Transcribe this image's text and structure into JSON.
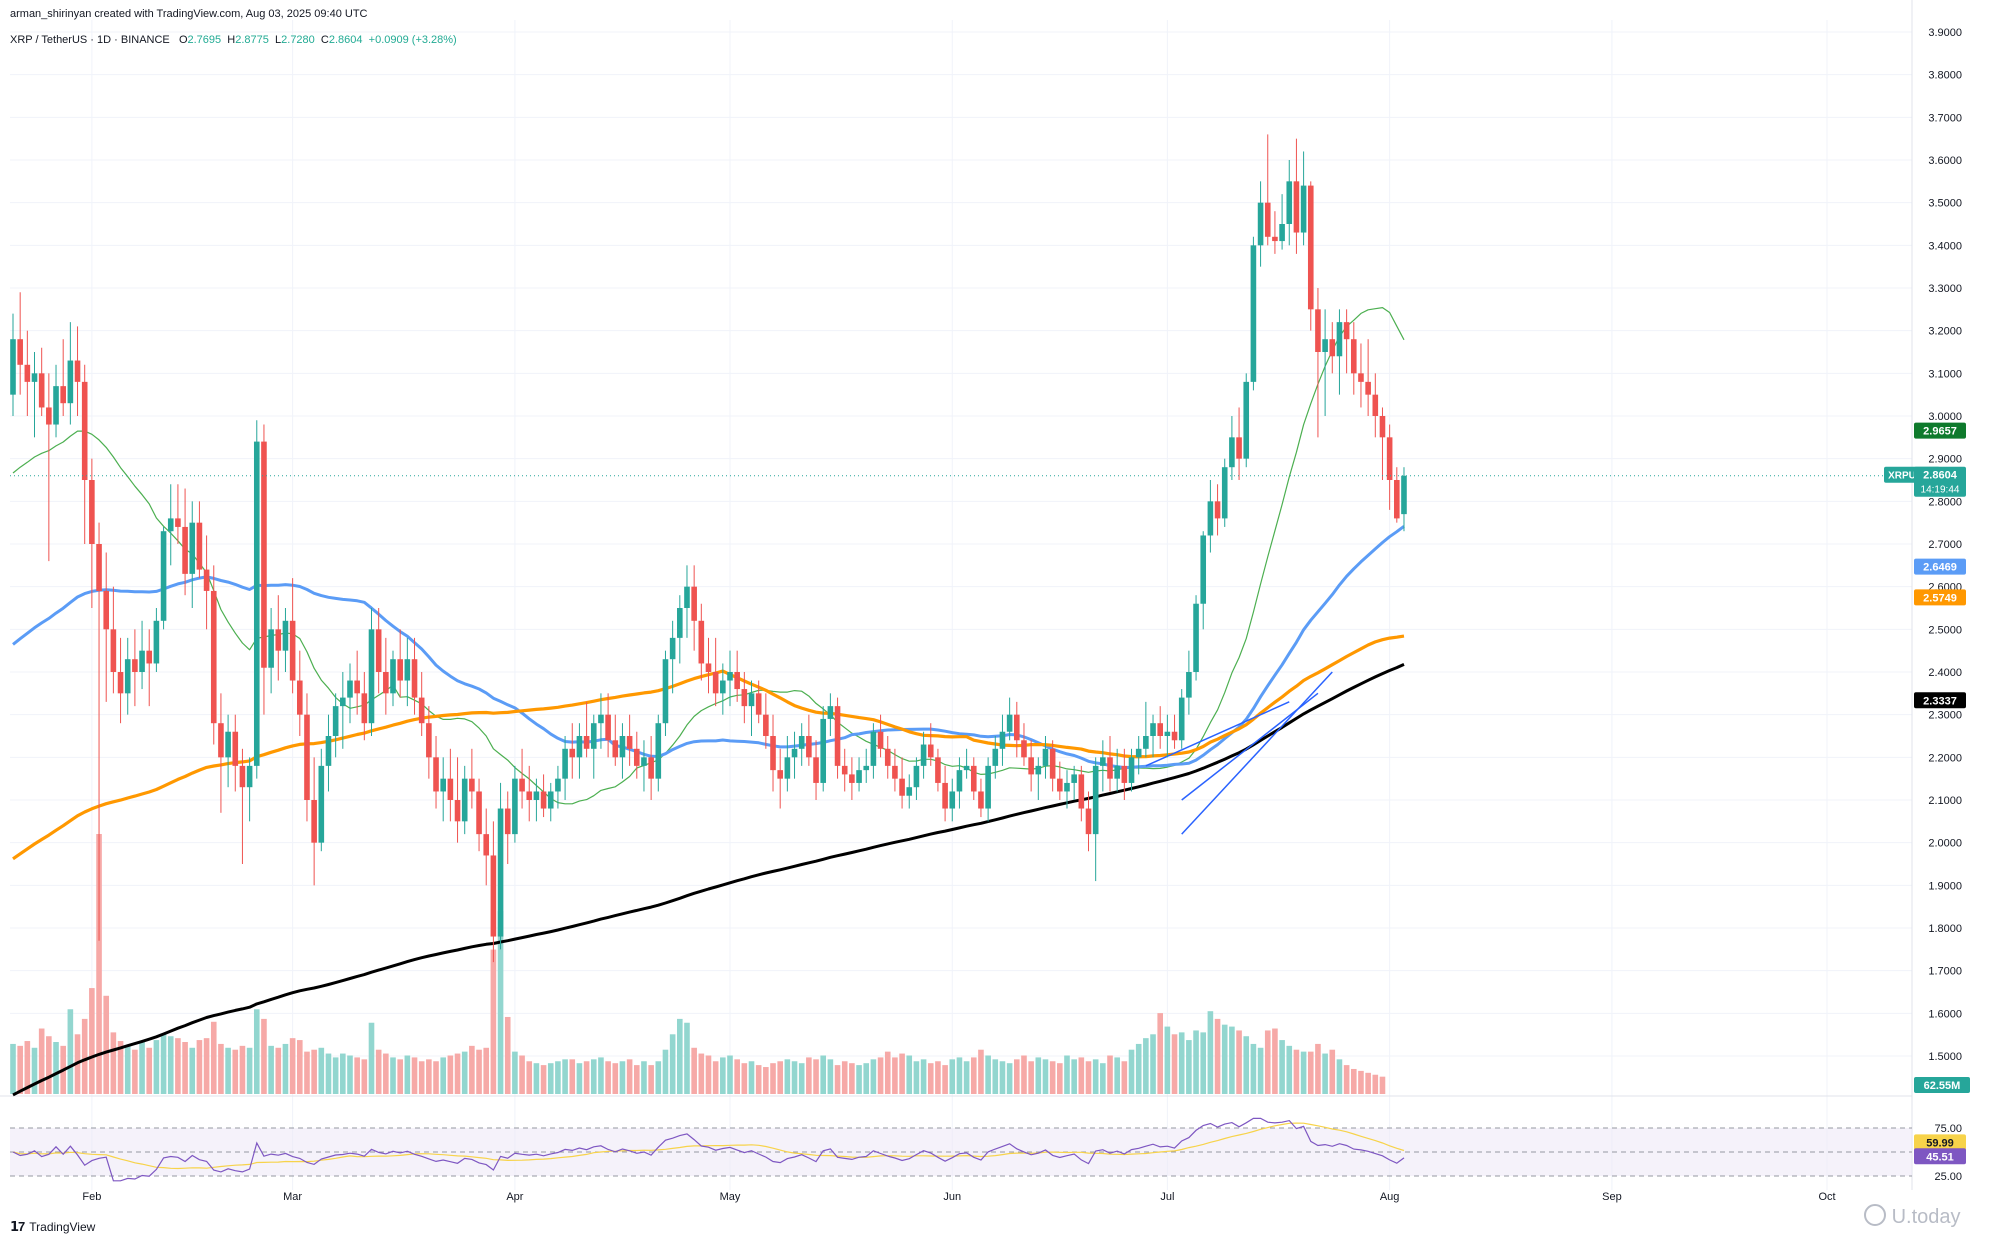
{
  "header": {
    "creator": "arman_shirinyan created with TradingView.com, Aug 03, 2025 09:40 UTC",
    "symbol": "XRP / TetherUS · 1D · BINANCE",
    "open_label": "O",
    "open": "2.7695",
    "high_label": "H",
    "high": "2.8775",
    "low_label": "L",
    "low": "2.7280",
    "close_label": "C",
    "close": "2.8604",
    "change": "+0.0909 (+3.28%)"
  },
  "footer": {
    "brand": "TradingView",
    "watermark": "U.today"
  },
  "colors": {
    "up": "#26a69a",
    "down": "#ef5350",
    "ma20": "#4caf50",
    "ma50": "#5b9cf6",
    "ma100": "#ff9800",
    "ma200": "#000000",
    "rsi": "#7e57c2",
    "rsi_ma": "#f7d34a",
    "trend": "#2962ff"
  },
  "chart_data": {
    "type": "candlestick",
    "symbol": "XRPUSDT",
    "timeframe": "1D",
    "ylim": [
      1.44,
      3.9
    ],
    "y_ticks": [
      "3.9000",
      "3.8000",
      "3.7000",
      "3.6000",
      "3.5000",
      "3.4000",
      "3.3000",
      "3.2000",
      "3.1000",
      "3.0000",
      "2.9000",
      "2.8000",
      "2.7000",
      "2.6000",
      "2.5000",
      "2.4000",
      "2.3000",
      "2.2000",
      "2.1000",
      "2.0000",
      "1.9000",
      "1.8000",
      "1.7000",
      "1.6000",
      "1.5000"
    ],
    "x_ticks": [
      {
        "label": "Feb",
        "i": 11
      },
      {
        "label": "Mar",
        "i": 39
      },
      {
        "label": "Apr",
        "i": 70
      },
      {
        "label": "May",
        "i": 100
      },
      {
        "label": "Jun",
        "i": 131
      },
      {
        "label": "Jul",
        "i": 161
      },
      {
        "label": "Aug",
        "i": 192
      },
      {
        "label": "Sep",
        "i": 223
      },
      {
        "label": "Oct",
        "i": 253
      }
    ],
    "candles": [
      [
        3.05,
        3.24,
        3.0,
        3.18
      ],
      [
        3.18,
        3.29,
        3.05,
        3.12
      ],
      [
        3.12,
        3.2,
        3.0,
        3.08
      ],
      [
        3.08,
        3.15,
        2.95,
        3.1
      ],
      [
        3.1,
        3.16,
        3.0,
        3.02
      ],
      [
        3.02,
        3.1,
        2.66,
        2.98
      ],
      [
        2.98,
        3.12,
        2.95,
        3.07
      ],
      [
        3.07,
        3.18,
        3.0,
        3.03
      ],
      [
        3.03,
        3.22,
        2.98,
        3.13
      ],
      [
        3.13,
        3.21,
        3.0,
        3.08
      ],
      [
        3.08,
        3.12,
        2.7,
        2.85
      ],
      [
        2.85,
        2.9,
        2.55,
        2.7
      ],
      [
        2.7,
        2.75,
        1.77,
        2.59
      ],
      [
        2.59,
        2.68,
        2.33,
        2.5
      ],
      [
        2.5,
        2.6,
        2.35,
        2.4
      ],
      [
        2.4,
        2.48,
        2.28,
        2.35
      ],
      [
        2.35,
        2.48,
        2.3,
        2.43
      ],
      [
        2.43,
        2.5,
        2.32,
        2.4
      ],
      [
        2.4,
        2.52,
        2.36,
        2.45
      ],
      [
        2.45,
        2.5,
        2.32,
        2.42
      ],
      [
        2.42,
        2.55,
        2.4,
        2.52
      ],
      [
        2.52,
        2.74,
        2.5,
        2.73
      ],
      [
        2.73,
        2.84,
        2.65,
        2.76
      ],
      [
        2.76,
        2.84,
        2.7,
        2.74
      ],
      [
        2.74,
        2.83,
        2.58,
        2.63
      ],
      [
        2.63,
        2.8,
        2.55,
        2.75
      ],
      [
        2.75,
        2.8,
        2.62,
        2.64
      ],
      [
        2.64,
        2.72,
        2.5,
        2.59
      ],
      [
        2.59,
        2.65,
        2.23,
        2.28
      ],
      [
        2.28,
        2.35,
        2.07,
        2.2
      ],
      [
        2.2,
        2.3,
        2.13,
        2.26
      ],
      [
        2.26,
        2.3,
        2.12,
        2.18
      ],
      [
        2.18,
        2.22,
        1.95,
        2.13
      ],
      [
        2.13,
        2.2,
        2.05,
        2.18
      ],
      [
        2.18,
        2.99,
        2.15,
        2.94
      ],
      [
        2.94,
        2.98,
        2.3,
        2.41
      ],
      [
        2.41,
        2.55,
        2.35,
        2.5
      ],
      [
        2.5,
        2.58,
        2.38,
        2.45
      ],
      [
        2.45,
        2.55,
        2.4,
        2.52
      ],
      [
        2.52,
        2.62,
        2.35,
        2.38
      ],
      [
        2.38,
        2.45,
        2.25,
        2.3
      ],
      [
        2.3,
        2.35,
        2.05,
        2.1
      ],
      [
        2.1,
        2.2,
        1.9,
        2.0
      ],
      [
        2.0,
        2.22,
        1.98,
        2.18
      ],
      [
        2.18,
        2.3,
        2.12,
        2.25
      ],
      [
        2.25,
        2.35,
        2.2,
        2.32
      ],
      [
        2.32,
        2.4,
        2.22,
        2.34
      ],
      [
        2.34,
        2.42,
        2.28,
        2.38
      ],
      [
        2.38,
        2.45,
        2.3,
        2.35
      ],
      [
        2.35,
        2.4,
        2.24,
        2.28
      ],
      [
        2.28,
        2.55,
        2.25,
        2.5
      ],
      [
        2.5,
        2.55,
        2.35,
        2.4
      ],
      [
        2.4,
        2.48,
        2.3,
        2.35
      ],
      [
        2.35,
        2.45,
        2.32,
        2.43
      ],
      [
        2.43,
        2.5,
        2.34,
        2.38
      ],
      [
        2.38,
        2.48,
        2.32,
        2.43
      ],
      [
        2.43,
        2.48,
        2.3,
        2.34
      ],
      [
        2.34,
        2.4,
        2.25,
        2.28
      ],
      [
        2.28,
        2.32,
        2.15,
        2.2
      ],
      [
        2.2,
        2.25,
        2.08,
        2.12
      ],
      [
        2.12,
        2.2,
        2.05,
        2.15
      ],
      [
        2.15,
        2.22,
        2.05,
        2.1
      ],
      [
        2.1,
        2.2,
        2.0,
        2.05
      ],
      [
        2.05,
        2.18,
        2.02,
        2.15
      ],
      [
        2.15,
        2.22,
        2.08,
        2.12
      ],
      [
        2.12,
        2.15,
        1.98,
        2.02
      ],
      [
        2.02,
        2.08,
        1.9,
        1.97
      ],
      [
        1.97,
        2.05,
        1.72,
        1.78
      ],
      [
        1.78,
        2.14,
        1.75,
        2.08
      ],
      [
        2.08,
        2.12,
        1.95,
        2.02
      ],
      [
        2.02,
        2.18,
        2.0,
        2.15
      ],
      [
        2.15,
        2.22,
        2.08,
        2.12
      ],
      [
        2.12,
        2.18,
        2.05,
        2.1
      ],
      [
        2.1,
        2.15,
        2.05,
        2.12
      ],
      [
        2.12,
        2.16,
        2.06,
        2.08
      ],
      [
        2.08,
        2.14,
        2.05,
        2.12
      ],
      [
        2.12,
        2.18,
        2.08,
        2.15
      ],
      [
        2.15,
        2.25,
        2.1,
        2.22
      ],
      [
        2.22,
        2.28,
        2.15,
        2.2
      ],
      [
        2.2,
        2.28,
        2.15,
        2.25
      ],
      [
        2.25,
        2.33,
        2.2,
        2.22
      ],
      [
        2.22,
        2.3,
        2.15,
        2.28
      ],
      [
        2.28,
        2.35,
        2.22,
        2.3
      ],
      [
        2.3,
        2.35,
        2.2,
        2.24
      ],
      [
        2.24,
        2.3,
        2.18,
        2.2
      ],
      [
        2.2,
        2.28,
        2.15,
        2.25
      ],
      [
        2.25,
        2.3,
        2.18,
        2.22
      ],
      [
        2.22,
        2.26,
        2.15,
        2.18
      ],
      [
        2.18,
        2.24,
        2.12,
        2.2
      ],
      [
        2.2,
        2.25,
        2.1,
        2.15
      ],
      [
        2.15,
        2.3,
        2.12,
        2.28
      ],
      [
        2.28,
        2.45,
        2.25,
        2.43
      ],
      [
        2.43,
        2.52,
        2.35,
        2.48
      ],
      [
        2.48,
        2.58,
        2.42,
        2.55
      ],
      [
        2.55,
        2.65,
        2.48,
        2.6
      ],
      [
        2.6,
        2.65,
        2.45,
        2.52
      ],
      [
        2.52,
        2.56,
        2.38,
        2.42
      ],
      [
        2.42,
        2.48,
        2.35,
        2.4
      ],
      [
        2.4,
        2.48,
        2.32,
        2.35
      ],
      [
        2.35,
        2.42,
        2.3,
        2.38
      ],
      [
        2.38,
        2.45,
        2.32,
        2.4
      ],
      [
        2.4,
        2.45,
        2.33,
        2.36
      ],
      [
        2.36,
        2.4,
        2.28,
        2.32
      ],
      [
        2.32,
        2.38,
        2.25,
        2.35
      ],
      [
        2.35,
        2.38,
        2.28,
        2.3
      ],
      [
        2.3,
        2.35,
        2.22,
        2.25
      ],
      [
        2.25,
        2.3,
        2.12,
        2.17
      ],
      [
        2.17,
        2.22,
        2.08,
        2.15
      ],
      [
        2.15,
        2.25,
        2.12,
        2.2
      ],
      [
        2.2,
        2.26,
        2.15,
        2.22
      ],
      [
        2.22,
        2.28,
        2.18,
        2.25
      ],
      [
        2.25,
        2.3,
        2.18,
        2.2
      ],
      [
        2.2,
        2.24,
        2.1,
        2.14
      ],
      [
        2.14,
        2.32,
        2.12,
        2.29
      ],
      [
        2.29,
        2.35,
        2.25,
        2.32
      ],
      [
        2.32,
        2.34,
        2.15,
        2.18
      ],
      [
        2.18,
        2.22,
        2.12,
        2.16
      ],
      [
        2.16,
        2.2,
        2.1,
        2.14
      ],
      [
        2.14,
        2.2,
        2.12,
        2.17
      ],
      [
        2.17,
        2.22,
        2.14,
        2.18
      ],
      [
        2.18,
        2.28,
        2.15,
        2.26
      ],
      [
        2.26,
        2.3,
        2.2,
        2.22
      ],
      [
        2.22,
        2.25,
        2.15,
        2.18
      ],
      [
        2.18,
        2.22,
        2.12,
        2.15
      ],
      [
        2.15,
        2.2,
        2.08,
        2.11
      ],
      [
        2.11,
        2.16,
        2.08,
        2.13
      ],
      [
        2.13,
        2.2,
        2.1,
        2.18
      ],
      [
        2.18,
        2.26,
        2.15,
        2.23
      ],
      [
        2.23,
        2.28,
        2.18,
        2.2
      ],
      [
        2.2,
        2.22,
        2.12,
        2.14
      ],
      [
        2.14,
        2.18,
        2.05,
        2.08
      ],
      [
        2.08,
        2.15,
        2.05,
        2.12
      ],
      [
        2.12,
        2.2,
        2.08,
        2.17
      ],
      [
        2.17,
        2.22,
        2.15,
        2.18
      ],
      [
        2.18,
        2.2,
        2.1,
        2.12
      ],
      [
        2.12,
        2.15,
        2.06,
        2.08
      ],
      [
        2.08,
        2.2,
        2.05,
        2.18
      ],
      [
        2.18,
        2.25,
        2.15,
        2.22
      ],
      [
        2.22,
        2.3,
        2.18,
        2.26
      ],
      [
        2.26,
        2.34,
        2.24,
        2.3
      ],
      [
        2.3,
        2.33,
        2.2,
        2.24
      ],
      [
        2.24,
        2.28,
        2.18,
        2.2
      ],
      [
        2.2,
        2.24,
        2.12,
        2.16
      ],
      [
        2.16,
        2.2,
        2.1,
        2.18
      ],
      [
        2.18,
        2.25,
        2.15,
        2.22
      ],
      [
        2.22,
        2.24,
        2.12,
        2.15
      ],
      [
        2.15,
        2.19,
        2.1,
        2.12
      ],
      [
        2.12,
        2.17,
        2.08,
        2.14
      ],
      [
        2.14,
        2.18,
        2.1,
        2.16
      ],
      [
        2.16,
        2.18,
        2.05,
        2.08
      ],
      [
        2.08,
        2.12,
        1.98,
        2.02
      ],
      [
        2.02,
        2.2,
        1.91,
        2.18
      ],
      [
        2.18,
        2.24,
        2.12,
        2.2
      ],
      [
        2.2,
        2.25,
        2.12,
        2.15
      ],
      [
        2.15,
        2.22,
        2.12,
        2.18
      ],
      [
        2.18,
        2.22,
        2.1,
        2.14
      ],
      [
        2.14,
        2.22,
        2.12,
        2.2
      ],
      [
        2.2,
        2.25,
        2.16,
        2.22
      ],
      [
        2.22,
        2.33,
        2.2,
        2.25
      ],
      [
        2.25,
        2.3,
        2.2,
        2.28
      ],
      [
        2.28,
        2.32,
        2.22,
        2.25
      ],
      [
        2.25,
        2.3,
        2.2,
        2.26
      ],
      [
        2.26,
        2.3,
        2.22,
        2.24
      ],
      [
        2.24,
        2.36,
        2.22,
        2.34
      ],
      [
        2.34,
        2.45,
        2.3,
        2.4
      ],
      [
        2.4,
        2.58,
        2.38,
        2.56
      ],
      [
        2.56,
        2.73,
        2.5,
        2.72
      ],
      [
        2.72,
        2.85,
        2.68,
        2.8
      ],
      [
        2.8,
        2.84,
        2.72,
        2.76
      ],
      [
        2.76,
        2.9,
        2.74,
        2.88
      ],
      [
        2.88,
        3.0,
        2.85,
        2.95
      ],
      [
        2.95,
        3.02,
        2.85,
        2.9
      ],
      [
        2.9,
        3.1,
        2.88,
        3.08
      ],
      [
        3.08,
        3.42,
        3.06,
        3.4
      ],
      [
        3.4,
        3.55,
        3.35,
        3.5
      ],
      [
        3.5,
        3.66,
        3.4,
        3.42
      ],
      [
        3.42,
        3.48,
        3.38,
        3.41
      ],
      [
        3.41,
        3.52,
        3.39,
        3.45
      ],
      [
        3.45,
        3.6,
        3.4,
        3.55
      ],
      [
        3.55,
        3.65,
        3.38,
        3.43
      ],
      [
        3.43,
        3.62,
        3.4,
        3.54
      ],
      [
        3.54,
        3.55,
        3.2,
        3.25
      ],
      [
        3.25,
        3.3,
        2.95,
        3.15
      ],
      [
        3.15,
        3.25,
        3.0,
        3.18
      ],
      [
        3.18,
        3.22,
        3.1,
        3.14
      ],
      [
        3.14,
        3.25,
        3.05,
        3.22
      ],
      [
        3.22,
        3.25,
        3.1,
        3.18
      ],
      [
        3.18,
        3.22,
        3.05,
        3.1
      ],
      [
        3.1,
        3.17,
        3.02,
        3.08
      ],
      [
        3.08,
        3.18,
        3.0,
        3.05
      ],
      [
        3.05,
        3.1,
        2.95,
        3.0
      ],
      [
        3.0,
        3.02,
        2.85,
        2.95
      ],
      [
        2.95,
        2.98,
        2.78,
        2.85
      ],
      [
        2.85,
        2.88,
        2.75,
        2.76
      ],
      [
        2.77,
        2.88,
        2.73,
        2.86
      ]
    ],
    "volume": [
      52,
      50,
      55,
      48,
      68,
      60,
      54,
      50,
      88,
      62,
      78,
      110,
      270,
      102,
      64,
      55,
      50,
      46,
      54,
      48,
      56,
      62,
      60,
      58,
      54,
      48,
      56,
      58,
      75,
      52,
      48,
      46,
      50,
      48,
      88,
      78,
      50,
      48,
      52,
      58,
      56,
      44,
      46,
      48,
      42,
      38,
      42,
      40,
      38,
      36,
      74,
      46,
      42,
      38,
      36,
      40,
      38,
      34,
      36,
      34,
      38,
      40,
      42,
      44,
      50,
      46,
      48,
      150,
      190,
      80,
      44,
      40,
      34,
      32,
      30,
      32,
      34,
      36,
      36,
      32,
      34,
      36,
      38,
      34,
      32,
      34,
      36,
      30,
      34,
      30,
      34,
      46,
      62,
      78,
      74,
      48,
      42,
      40,
      34,
      38,
      40,
      36,
      32,
      34,
      30,
      28,
      32,
      34,
      36,
      34,
      32,
      38,
      36,
      40,
      36,
      30,
      34,
      32,
      30,
      32,
      36,
      38,
      44,
      38,
      42,
      40,
      34,
      36,
      32,
      34,
      30,
      36,
      38,
      34,
      38,
      46,
      40,
      36,
      34,
      32,
      36,
      40,
      34,
      38,
      36,
      34,
      32,
      40,
      36,
      38,
      34,
      36,
      32,
      40,
      38,
      34,
      46,
      52,
      58,
      62,
      84,
      70,
      62,
      64,
      56,
      66,
      64,
      86,
      78,
      72,
      70,
      66,
      60,
      52,
      48,
      66,
      68,
      56,
      50,
      46,
      44,
      44,
      52,
      42,
      46,
      36,
      30,
      26,
      24,
      22,
      20,
      18
    ],
    "rsi_levels": [
      75,
      59.99,
      45.51,
      25
    ],
    "indicators": {
      "ma20_last": "2.9657",
      "ma50_last": "2.6469",
      "ma100_last": "2.5749",
      "ma200_last": "2.3337"
    },
    "price_labels": {
      "ma20": "2.9657",
      "current_symbol": "XRPUSDT",
      "current": "2.8604",
      "countdown": "14:19:44",
      "ma50": "2.6469",
      "ma100": "2.5749",
      "ma200": "2.3337",
      "volume": "62.55M",
      "rsi_ma": "59.99",
      "rsi": "45.51",
      "rsi_top": "75.00",
      "rsi_bottom": "25.00"
    },
    "trendlines": [
      {
        "from": [
          163,
          2.02
        ],
        "to": [
          184,
          2.4
        ]
      },
      {
        "from": [
          158,
          2.18
        ],
        "to": [
          178,
          2.33
        ]
      },
      {
        "from": [
          163,
          2.1
        ],
        "to": [
          182,
          2.35
        ]
      }
    ]
  }
}
